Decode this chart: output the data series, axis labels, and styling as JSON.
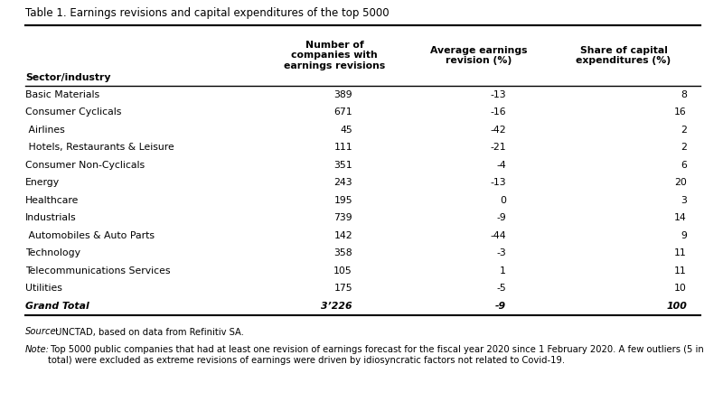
{
  "title": "Table 1. Earnings revisions and capital expenditures of the top 5000",
  "col_headers": [
    "Sector/industry",
    "Number of\ncompanies with\nearnings revisions",
    "Average earnings\nrevision (%)",
    "Share of capital\nexpenditures (%)"
  ],
  "rows": [
    {
      "sector": "Basic Materials",
      "indent": false,
      "n": "389",
      "avg": "-13",
      "share": "8"
    },
    {
      "sector": "Consumer Cyclicals",
      "indent": false,
      "n": "671",
      "avg": "-16",
      "share": "16"
    },
    {
      "sector": " Airlines",
      "indent": true,
      "n": "45",
      "avg": "-42",
      "share": "2"
    },
    {
      "sector": " Hotels, Restaurants & Leisure",
      "indent": true,
      "n": "111",
      "avg": "-21",
      "share": "2"
    },
    {
      "sector": "Consumer Non-Cyclicals",
      "indent": false,
      "n": "351",
      "avg": "-4",
      "share": "6"
    },
    {
      "sector": "Energy",
      "indent": false,
      "n": "243",
      "avg": "-13",
      "share": "20"
    },
    {
      "sector": "Healthcare",
      "indent": false,
      "n": "195",
      "avg": "0",
      "share": "3"
    },
    {
      "sector": "Industrials",
      "indent": false,
      "n": "739",
      "avg": "-9",
      "share": "14"
    },
    {
      "sector": " Automobiles & Auto Parts",
      "indent": true,
      "n": "142",
      "avg": "-44",
      "share": "9"
    },
    {
      "sector": "Technology",
      "indent": false,
      "n": "358",
      "avg": "-3",
      "share": "11"
    },
    {
      "sector": "Telecommunications Services",
      "indent": false,
      "n": "105",
      "avg": "1",
      "share": "11"
    },
    {
      "sector": "Utilities",
      "indent": false,
      "n": "175",
      "avg": "-5",
      "share": "10"
    },
    {
      "sector": "Grand Total",
      "indent": false,
      "n": "3’226",
      "avg": "-9",
      "share": "100",
      "bold": true
    }
  ],
  "source_italic": "Source:",
  "source_normal": " UNCTAD, based on data from Refinitiv SA.",
  "note_italic": "Note:",
  "note_normal": " Top 5000 public companies that had at least one revision of earnings forecast for the fiscal year 2020 since 1 February 2020. A few outliers (5 in total) were excluded as extreme revisions of earnings were driven by idiosyncratic factors not related to Covid-19.",
  "bg_color": "#ffffff",
  "text_color": "#000000",
  "line_color": "#000000",
  "title_fontsize": 8.5,
  "header_fontsize": 7.8,
  "data_fontsize": 7.8,
  "note_fontsize": 7.2
}
